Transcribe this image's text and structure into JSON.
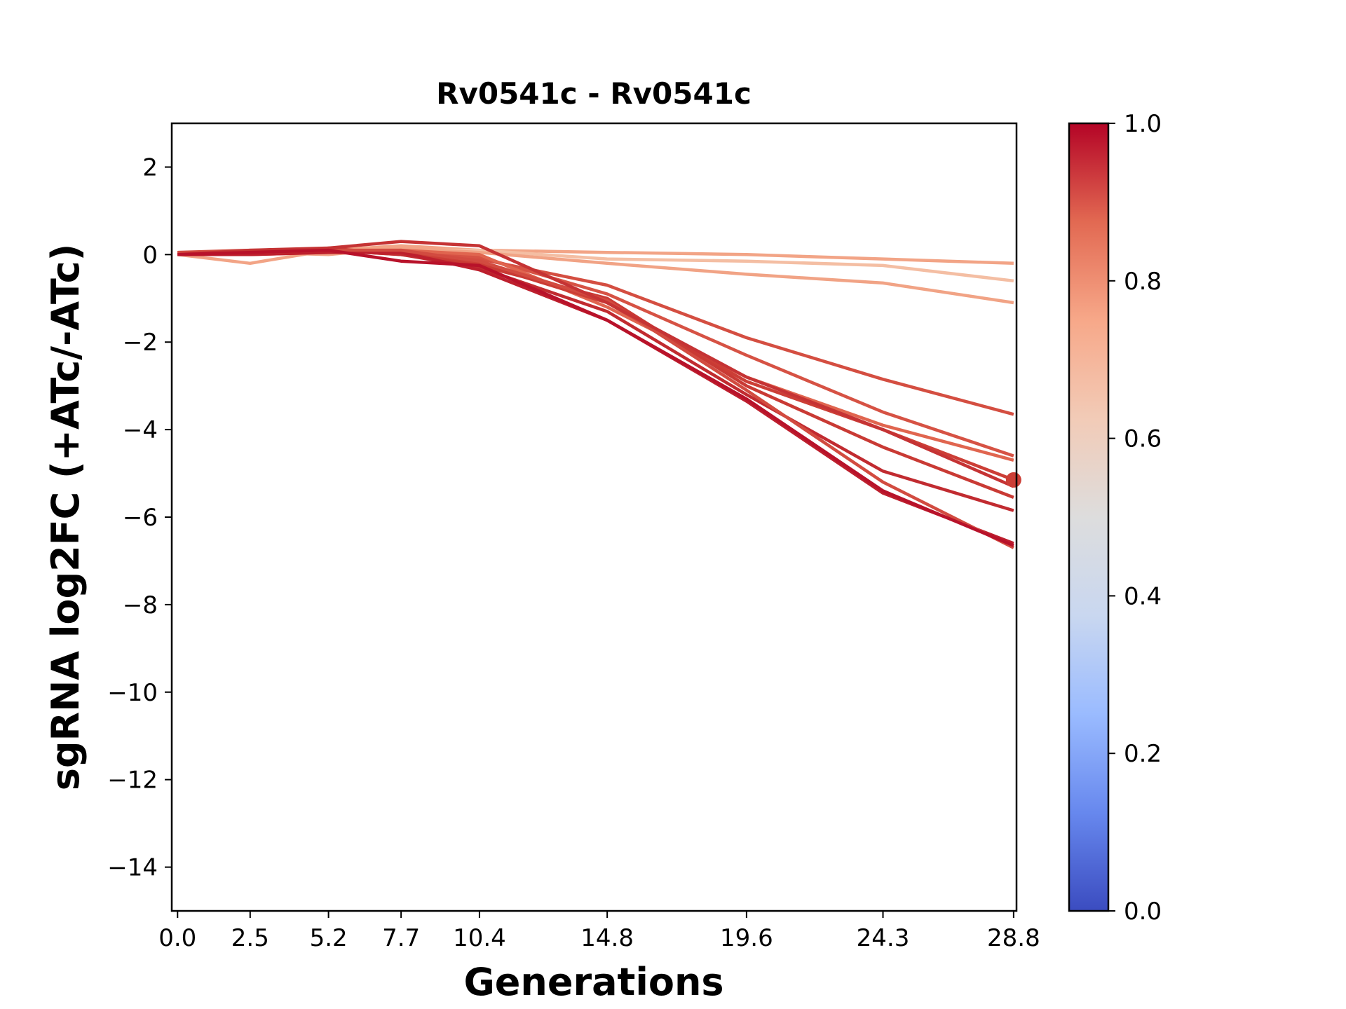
{
  "chart_data": {
    "type": "line",
    "title": "Rv0541c - Rv0541c",
    "xlabel": "Generations",
    "ylabel": "sgRNA log2FC (+ATc/-ATc)",
    "x": [
      0.0,
      2.5,
      5.2,
      7.7,
      10.4,
      14.8,
      19.6,
      24.3,
      28.8
    ],
    "xtick_labels": [
      "0.0",
      "2.5",
      "5.2",
      "7.7",
      "10.4",
      "14.8",
      "19.6",
      "24.3",
      "28.8"
    ],
    "xlim": [
      -0.2,
      28.9
    ],
    "ylim": [
      -15,
      3
    ],
    "yticks": [
      2,
      0,
      -2,
      -4,
      -6,
      -8,
      -10,
      -12,
      -14
    ],
    "ytick_labels": [
      "2",
      "0",
      "−2",
      "−4",
      "−6",
      "−8",
      "−10",
      "−12",
      "−14"
    ],
    "grid": false,
    "colormap": "coolwarm",
    "colorbar": {
      "min": 0.0,
      "max": 1.0,
      "ticks": [
        0.0,
        0.2,
        0.4,
        0.6,
        0.8,
        1.0
      ],
      "tick_labels": [
        "0.0",
        "0.2",
        "0.4",
        "0.6",
        "0.8",
        "1.0"
      ],
      "stops": [
        "#3b4cc0",
        "#6788ee",
        "#9abbff",
        "#c9d7f0",
        "#dddddd",
        "#f2cbb7",
        "#f7a889",
        "#e26952",
        "#b40426"
      ]
    },
    "series": [
      {
        "values": [
          0.0,
          -0.2,
          0.1,
          0.2,
          0.1,
          0.05,
          0.0,
          -0.1,
          -0.2
        ],
        "color": "#f2a486",
        "score": 0.72
      },
      {
        "values": [
          0.0,
          0.0,
          0.05,
          0.1,
          0.1,
          -0.1,
          -0.15,
          -0.25,
          -0.6
        ],
        "color": "#f4bea3",
        "score": 0.66
      },
      {
        "values": [
          0.0,
          0.05,
          0.0,
          0.15,
          0.05,
          -0.2,
          -0.45,
          -0.65,
          -1.1
        ],
        "color": "#f1a385",
        "score": 0.73
      },
      {
        "values": [
          0.05,
          0.1,
          0.1,
          0.0,
          -0.1,
          -0.7,
          -1.9,
          -2.85,
          -3.65
        ],
        "color": "#d44e41",
        "score": 0.88
      },
      {
        "values": [
          0.0,
          0.05,
          0.1,
          0.05,
          -0.05,
          -0.9,
          -2.3,
          -3.6,
          -4.6
        ],
        "color": "#d65244",
        "score": 0.87
      },
      {
        "values": [
          0.05,
          0.0,
          0.05,
          0.1,
          0.0,
          -1.2,
          -2.8,
          -3.9,
          -4.7
        ],
        "color": "#e0654f",
        "score": 0.83
      },
      {
        "values": [
          0.0,
          0.05,
          0.1,
          0.05,
          -0.2,
          -1.1,
          -2.9,
          -4.0,
          -5.15
        ],
        "color": "#cc3e36",
        "score": 0.9
      },
      {
        "values": [
          0.05,
          0.0,
          0.15,
          0.0,
          -0.25,
          -1.0,
          -3.0,
          -4.4,
          -5.55
        ],
        "color": "#c93a34",
        "score": 0.91
      },
      {
        "values": [
          0.0,
          0.05,
          0.1,
          0.0,
          -0.3,
          -1.3,
          -3.2,
          -4.95,
          -5.85
        ],
        "color": "#c12b30",
        "score": 0.94
      },
      {
        "values": [
          0.0,
          0.0,
          0.05,
          0.05,
          -0.35,
          -1.5,
          -3.35,
          -5.45,
          -6.6
        ],
        "color": "#bd1f2d",
        "score": 0.96
      },
      {
        "values": [
          0.05,
          0.05,
          0.1,
          0.1,
          -0.15,
          -1.05,
          -3.1,
          -5.2,
          -6.7
        ],
        "color": "#d24b40",
        "score": 0.88
      },
      {
        "values": [
          0.0,
          0.1,
          0.15,
          0.3,
          0.2,
          -1.1,
          -2.8,
          -4.0,
          -5.3
        ],
        "color": "#c53334",
        "score": 0.92
      },
      {
        "values": [
          0.0,
          0.05,
          0.1,
          -0.15,
          -0.25,
          -1.5,
          -3.3,
          -5.4,
          -6.65
        ],
        "color": "#b8122a",
        "score": 0.98
      }
    ],
    "highlight_point": {
      "x": 28.8,
      "y": -5.15,
      "color": "#cc3e36"
    }
  }
}
